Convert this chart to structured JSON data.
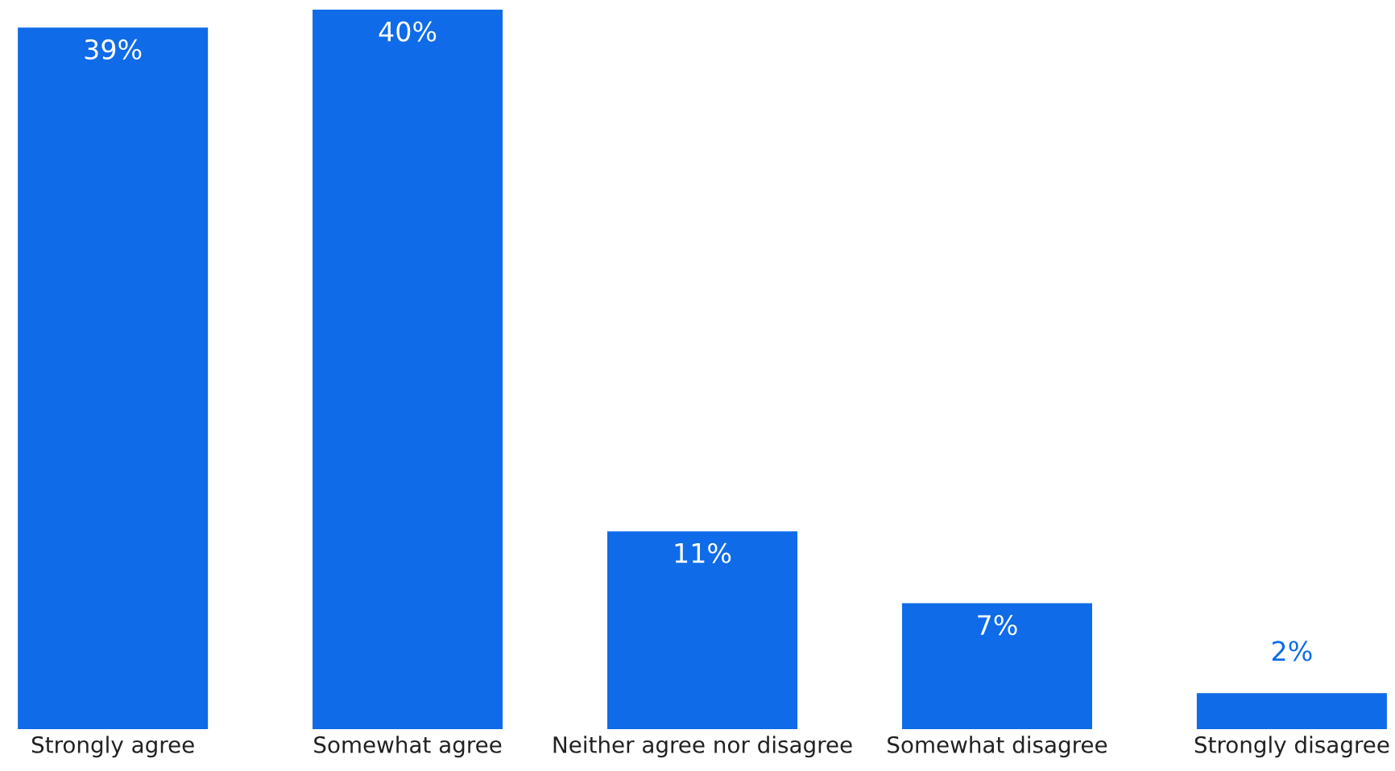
{
  "chart_data": {
    "type": "bar",
    "categories": [
      "Strongly agree",
      "Somewhat agree",
      "Neither agree nor disagree",
      "Somewhat disagree",
      "Strongly disagree"
    ],
    "values": [
      39,
      40,
      11,
      7,
      2
    ],
    "value_labels": [
      "39%",
      "40%",
      "11%",
      "7%",
      "2%"
    ],
    "color": "#0f6be8",
    "grid": false
  }
}
